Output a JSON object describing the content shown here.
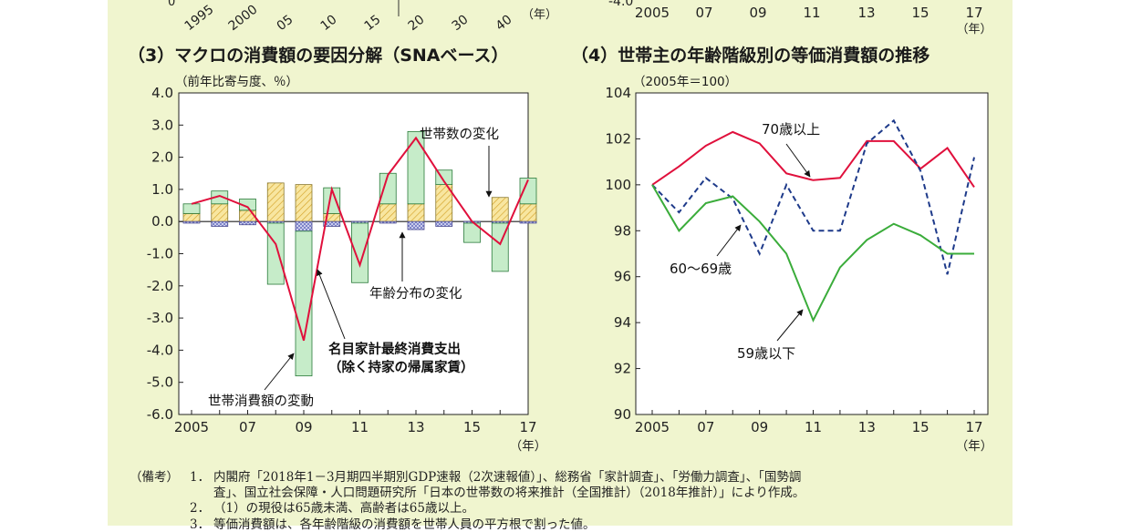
{
  "top_fragment": {
    "left_ticks": [
      "1995",
      "2000",
      "05",
      "10",
      "15",
      "20",
      "30",
      "40"
    ],
    "left_unit": "（年）",
    "right_ticks": [
      "2005",
      "07",
      "09",
      "11",
      "13",
      "15",
      "17"
    ],
    "right_unit": "（年）",
    "clipped_values": [
      "0",
      "-4.0"
    ]
  },
  "chart_data": [
    {
      "type": "bar",
      "title": "（3）マクロの消費額の要因分解（SNAベース）",
      "ylabel": "（前年比寄与度、％）",
      "xlabel": "（年）",
      "ylim": [
        -6.0,
        4.0
      ],
      "yticks": [
        "4.0",
        "3.0",
        "2.0",
        "1.0",
        "0.0",
        "-1.0",
        "-2.0",
        "-3.0",
        "-4.0",
        "-5.0",
        "-6.0"
      ],
      "x": [
        2005,
        2006,
        2007,
        2008,
        2009,
        2010,
        2011,
        2012,
        2013,
        2014,
        2015,
        2016,
        2017
      ],
      "xtick_labels": [
        "2005",
        "07",
        "09",
        "11",
        "13",
        "15",
        "17"
      ],
      "series": [
        {
          "name": "世帯数の変化",
          "kind": "stacked-bar",
          "color": "#f5d67a",
          "values": [
            0.25,
            0.55,
            0.35,
            1.2,
            1.15,
            0.25,
            0.0,
            0.55,
            0.55,
            1.15,
            0.0,
            0.75,
            0.55
          ]
        },
        {
          "name": "年齢分布の変化",
          "kind": "stacked-bar",
          "color": "#9aa0d8",
          "values": [
            -0.05,
            -0.15,
            -0.1,
            -0.05,
            -0.3,
            -0.15,
            -0.05,
            -0.05,
            -0.25,
            -0.15,
            -0.05,
            -0.05,
            -0.05
          ]
        },
        {
          "name": "世帯消費額の変動",
          "kind": "stacked-bar",
          "color": "#c6ecc9",
          "values": [
            0.3,
            0.4,
            0.35,
            -1.9,
            -4.5,
            0.8,
            -1.85,
            0.95,
            2.25,
            0.45,
            -0.6,
            -1.5,
            0.8
          ]
        },
        {
          "name": "名目家計最終消費支出（除く持家の帰属家賃）",
          "kind": "line",
          "color": "#e0103c",
          "values": [
            0.55,
            0.8,
            0.45,
            -0.7,
            -3.7,
            1.0,
            -1.35,
            1.45,
            2.6,
            1.25,
            0.0,
            -0.7,
            1.3
          ]
        }
      ],
      "annotations": [
        "世帯数の変化",
        "年齢分布の変化",
        "名目家計最終消費支出",
        "（除く持家の帰属家賃）",
        "世帯消費額の変動"
      ]
    },
    {
      "type": "line",
      "title": "（4）世帯主の年齢階級別の等価消費額の推移",
      "ylabel": "（2005年＝100）",
      "xlabel": "（年）",
      "ylim": [
        90,
        104
      ],
      "yticks": [
        "104",
        "102",
        "100",
        "98",
        "96",
        "94",
        "92",
        "90"
      ],
      "x": [
        2005,
        2006,
        2007,
        2008,
        2009,
        2010,
        2011,
        2012,
        2013,
        2014,
        2015,
        2016,
        2017
      ],
      "xtick_labels": [
        "2005",
        "07",
        "09",
        "11",
        "13",
        "15",
        "17"
      ],
      "series": [
        {
          "name": "70歳以上",
          "color": "#e0103c",
          "dash": "solid",
          "values": [
            100.0,
            100.8,
            101.7,
            102.3,
            101.8,
            100.5,
            100.2,
            100.3,
            101.9,
            101.9,
            100.7,
            101.6,
            99.9
          ]
        },
        {
          "name": "60〜69歳",
          "color": "#1e3a8a",
          "dash": "dashed",
          "values": [
            100.0,
            98.8,
            100.3,
            99.4,
            97.0,
            100.0,
            98.0,
            98.0,
            101.8,
            102.8,
            100.6,
            96.1,
            101.2
          ]
        },
        {
          "name": "59歳以下",
          "color": "#3aac3a",
          "dash": "solid",
          "values": [
            100.0,
            98.0,
            99.2,
            99.5,
            98.4,
            97.0,
            94.1,
            96.4,
            97.6,
            98.3,
            97.8,
            97.0,
            97.0
          ]
        }
      ]
    }
  ],
  "notes": {
    "label": "（備考）",
    "items": [
      {
        "num": "1．",
        "lines": [
          "内閣府「2018年1－3月期四半期別GDP速報（2次速報値）」、総務省「家計調査」、「労働力調査」、「国勢調",
          "査」、国立社会保障・人口問題研究所「日本の世帯数の将来推計（全国推計）（2018年推計）」により作成。"
        ]
      },
      {
        "num": "2．",
        "lines": [
          "（1）の現役は65歳未満、高齢者は65歳以上。"
        ]
      },
      {
        "num": "3．",
        "lines": [
          "等価消費額は、各年齢階級の消費額を世帯人員の平方根で割った値。"
        ]
      }
    ]
  }
}
